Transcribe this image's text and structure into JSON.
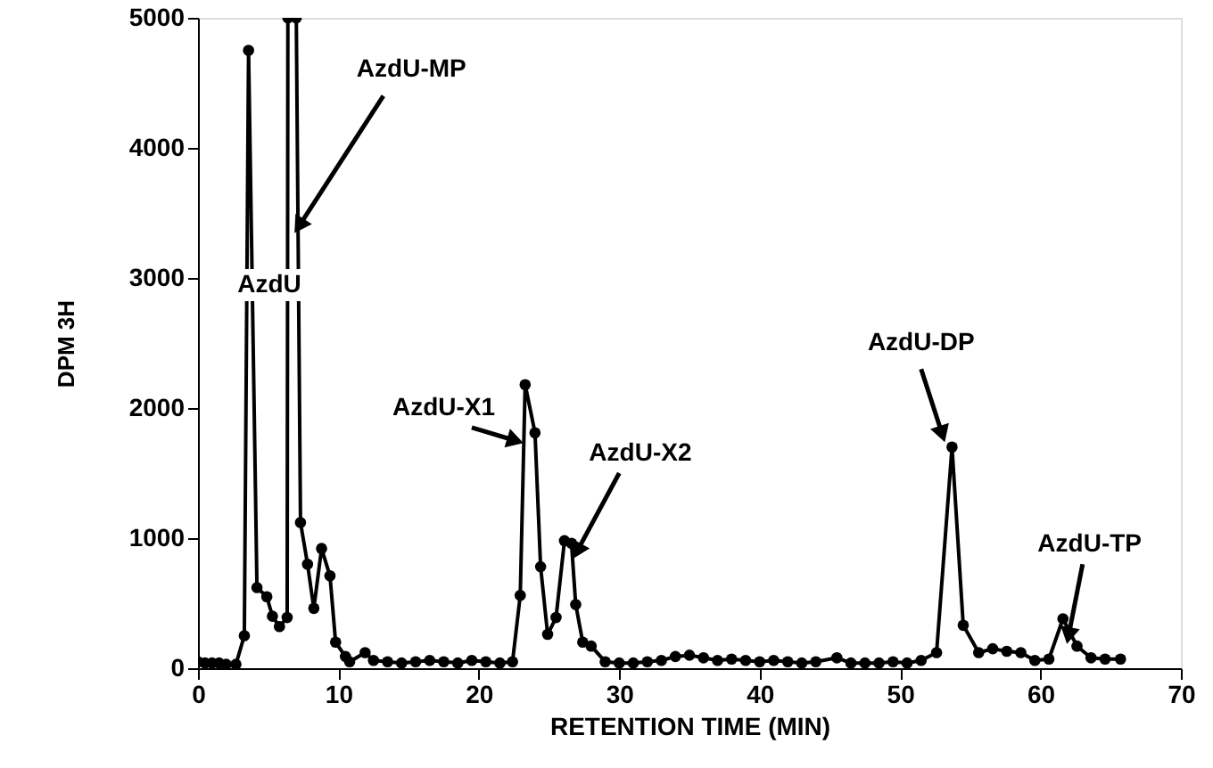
{
  "chart_data": {
    "type": "line",
    "xlabel": "RETENTION TIME (MIN)",
    "ylabel": "DPM 3H",
    "xlim": [
      0,
      70
    ],
    "ylim": [
      0,
      5000
    ],
    "xticks": [
      0,
      10,
      20,
      30,
      40,
      50,
      60,
      70
    ],
    "yticks": [
      0,
      1000,
      2000,
      3000,
      4000,
      5000
    ],
    "grid": false,
    "marker": "circle",
    "line_style": "solid",
    "series": [
      {
        "color": "#000000",
        "x": [
          0,
          0.5,
          1,
          1.5,
          2,
          2.7,
          3.3,
          3.6,
          4.2,
          4.9,
          5.3,
          5.8,
          6.35,
          6.4,
          7.0,
          7.3,
          7.8,
          8.25,
          8.8,
          9.4,
          9.8,
          10.5,
          10.8,
          11.9,
          12.5,
          13.5,
          14.5,
          15.5,
          16.5,
          17.5,
          18.5,
          19.5,
          20.5,
          21.5,
          22.4,
          22.95,
          23.3,
          24.0,
          24.4,
          24.9,
          25.5,
          26.1,
          26.6,
          26.9,
          27.4,
          28.0,
          29,
          30,
          31,
          32,
          33,
          34,
          35,
          36,
          37,
          38,
          39,
          40,
          41,
          42,
          43,
          44,
          45.5,
          46.5,
          47.5,
          48.5,
          49.5,
          50.5,
          51.5,
          52.6,
          53.7,
          54.5,
          55.6,
          56.6,
          57.6,
          58.6,
          59.6,
          60.6,
          61.6,
          62.6,
          63.6,
          64.6,
          65.7
        ],
        "values": [
          50,
          40,
          40,
          40,
          30,
          30,
          250,
          4750,
          620,
          550,
          400,
          320,
          390,
          5000,
          5000,
          1120,
          800,
          460,
          920,
          710,
          200,
          90,
          50,
          120,
          60,
          50,
          40,
          50,
          60,
          50,
          40,
          60,
          50,
          40,
          50,
          560,
          2180,
          1810,
          780,
          260,
          390,
          980,
          960,
          490,
          200,
          170,
          50,
          40,
          40,
          50,
          60,
          90,
          100,
          80,
          60,
          70,
          60,
          50,
          60,
          50,
          40,
          50,
          80,
          40,
          40,
          40,
          50,
          40,
          60,
          120,
          1700,
          330,
          120,
          150,
          130,
          120,
          60,
          70,
          380,
          170,
          80,
          70,
          70
        ]
      }
    ],
    "annotations": [
      {
        "text": "AzdU-MP",
        "x": 7.2,
        "y": 3400
      },
      "AzdU",
      {
        "text": "AzdU-X1",
        "x": 22.6,
        "y": 1750
      },
      {
        "text": "AzdU-X2",
        "x": 27,
        "y": 900
      },
      {
        "text": "AzdU-DP",
        "x": 53,
        "y": 1800
      },
      {
        "text": "AzdU-TP",
        "x": 62,
        "y": 250
      }
    ]
  }
}
